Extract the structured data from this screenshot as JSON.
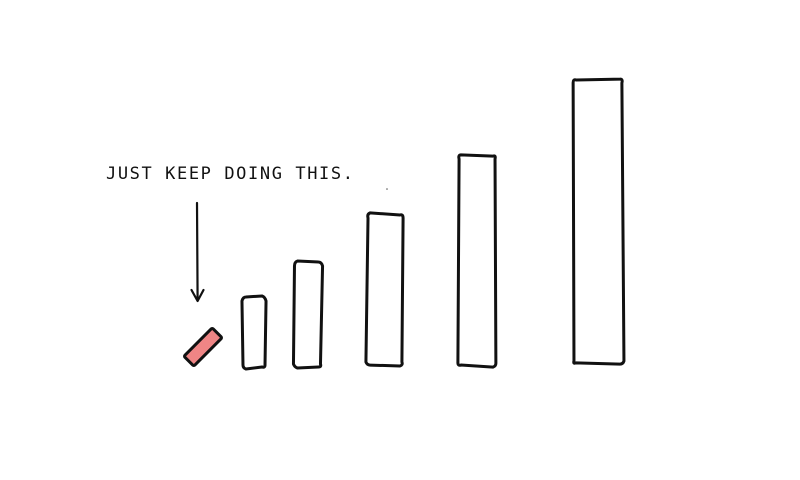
{
  "annotation": {
    "text": "JUST KEEP DOING THIS."
  },
  "colors": {
    "ink": "#111111",
    "highlight_fill": "#ef8585",
    "background": "#ffffff"
  },
  "steps": [
    {
      "label": "",
      "relative_height": 0.14,
      "highlighted": true,
      "tilted": true
    },
    {
      "label": "",
      "relative_height": 0.25,
      "highlighted": false,
      "tilted": false
    },
    {
      "label": "",
      "relative_height": 0.37,
      "highlighted": false,
      "tilted": false
    },
    {
      "label": "",
      "relative_height": 0.53,
      "highlighted": false,
      "tilted": false
    },
    {
      "label": "",
      "relative_height": 0.74,
      "highlighted": false,
      "tilted": false
    },
    {
      "label": "",
      "relative_height": 1.0,
      "highlighted": false,
      "tilted": false
    }
  ],
  "icons": {
    "arrow": "down-arrow-icon"
  }
}
